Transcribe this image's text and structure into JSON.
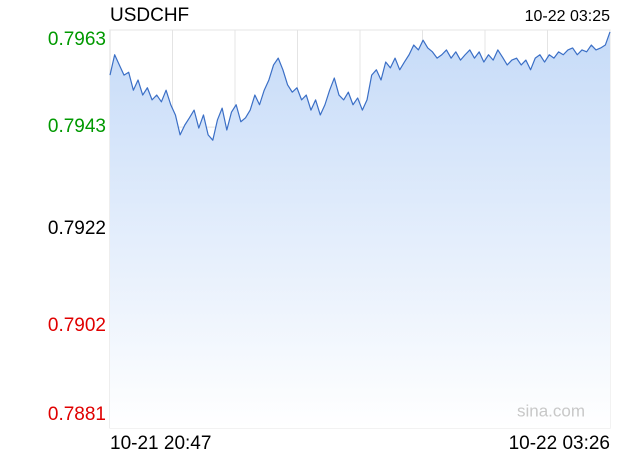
{
  "chart_data": {
    "type": "line",
    "title": "USDCHF",
    "timestamp": "10-22 03:25",
    "watermark": "sina.com",
    "categories": [
      "10-21 20:47",
      null,
      null,
      null,
      null,
      null,
      null,
      null,
      null,
      null,
      null,
      null,
      null,
      null,
      null,
      null,
      null,
      null,
      null,
      null,
      null,
      null,
      null,
      null,
      null,
      null,
      null,
      null,
      null,
      null,
      null,
      null,
      null,
      null,
      null,
      null,
      null,
      null,
      null,
      null,
      null,
      null,
      null,
      null,
      null,
      null,
      null,
      null,
      null,
      null,
      null,
      null,
      null,
      null,
      null,
      null,
      null,
      null,
      null,
      null,
      null,
      null,
      null,
      null,
      null,
      null,
      null,
      null,
      null,
      null,
      null,
      null,
      null,
      null,
      null,
      null,
      null,
      null,
      null,
      null,
      null,
      null,
      null,
      null,
      null,
      null,
      null,
      null,
      null,
      null,
      null,
      null,
      null,
      null,
      null,
      null,
      null,
      null,
      null,
      null,
      null,
      null,
      null,
      null,
      null,
      null,
      null,
      "10-22 03:26"
    ],
    "values": [
      0.79537,
      0.79579,
      0.79558,
      0.79537,
      0.79543,
      0.79506,
      0.79527,
      0.79496,
      0.79511,
      0.79486,
      0.79496,
      0.79482,
      0.79506,
      0.79476,
      0.79455,
      0.79414,
      0.79434,
      0.79449,
      0.79465,
      0.79428,
      0.79455,
      0.79414,
      0.79403,
      0.79445,
      0.79469,
      0.79424,
      0.79461,
      0.79476,
      0.79441,
      0.79449,
      0.79465,
      0.79496,
      0.79476,
      0.79506,
      0.79527,
      0.79558,
      0.79572,
      0.79548,
      0.79517,
      0.79502,
      0.79511,
      0.79486,
      0.79496,
      0.79465,
      0.79486,
      0.79455,
      0.79476,
      0.79506,
      0.79531,
      0.79496,
      0.79486,
      0.79502,
      0.79476,
      0.7949,
      0.79465,
      0.79486,
      0.79537,
      0.79548,
      0.79527,
      0.79564,
      0.79552,
      0.79572,
      0.79548,
      0.79564,
      0.79579,
      0.79599,
      0.79589,
      0.79609,
      0.79593,
      0.79585,
      0.79572,
      0.79579,
      0.79589,
      0.79572,
      0.79585,
      0.79568,
      0.79579,
      0.79589,
      0.79572,
      0.79585,
      0.79564,
      0.79579,
      0.79568,
      0.79589,
      0.79574,
      0.79558,
      0.79568,
      0.79572,
      0.79558,
      0.79568,
      0.79548,
      0.79572,
      0.79579,
      0.79564,
      0.79579,
      0.79572,
      0.79585,
      0.79579,
      0.79589,
      0.79593,
      0.79579,
      0.79589,
      0.79585,
      0.79599,
      0.79589,
      0.79593,
      0.79599,
      0.79626
    ],
    "color": "#3b6fc6",
    "fill_color": "#c6dbf8",
    "ylim": [
      0.7881,
      0.7963
    ],
    "yticks": [
      0.7881,
      0.7902,
      0.7922,
      0.7943,
      0.7963
    ],
    "ytick_colors": [
      "#e00000",
      "#e00000",
      "#000000",
      "#009900",
      "#009900"
    ],
    "grid": true
  }
}
